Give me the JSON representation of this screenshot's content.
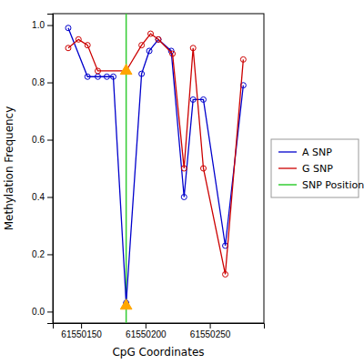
{
  "chart_data": {
    "type": "line",
    "x_label": "CpG Coordinates",
    "y_label": "Methylation Frequency",
    "series": [
      {
        "name": "A SNP",
        "color": "#0000cc",
        "marker": "circle",
        "line_style": "solid",
        "x": [
          61550140,
          61550155,
          61550163,
          61550170,
          61550175,
          61550185,
          61550197,
          61550203,
          61550210,
          61550220,
          61550230,
          61550237,
          61550245,
          61550262,
          61550276
        ],
        "values": [
          0.99,
          0.82,
          0.82,
          0.82,
          0.82,
          0.03,
          0.83,
          0.91,
          0.95,
          0.91,
          0.4,
          0.74,
          0.74,
          0.23,
          0.79
        ]
      },
      {
        "name": "G SNP",
        "color": "#cc0000",
        "marker": "circle",
        "line_style": "solid",
        "x": [
          61550140,
          61550148,
          61550155,
          61550163,
          61550185,
          61550197,
          61550204,
          61550210,
          61550221,
          61550230,
          61550237,
          61550245,
          61550262,
          61550276
        ],
        "values": [
          0.92,
          0.95,
          0.93,
          0.84,
          0.84,
          0.93,
          0.97,
          0.95,
          0.9,
          0.5,
          0.92,
          0.5,
          0.13,
          0.88
        ]
      },
      {
        "name": "SNP Position",
        "type": "vline",
        "color": "#33cc33",
        "x": [
          61550185
        ]
      },
      {
        "type": "scatter",
        "color": "#FFA500",
        "marker": "triangle",
        "x": [
          61550185,
          61550185
        ],
        "values": [
          0.84,
          0.02
        ]
      }
    ],
    "xlim": [
      61550128,
      61550292
    ],
    "ylim": [
      -0.04,
      1.04
    ],
    "xticks": [
      61550150,
      61550200,
      61550250
    ],
    "yticks": [
      {
        "value": 0,
        "label": "0.0"
      },
      0.2,
      0.4,
      0.6,
      0.8,
      {
        "value": 1,
        "label": "1.0"
      }
    ],
    "grid": false,
    "legend": "right"
  }
}
